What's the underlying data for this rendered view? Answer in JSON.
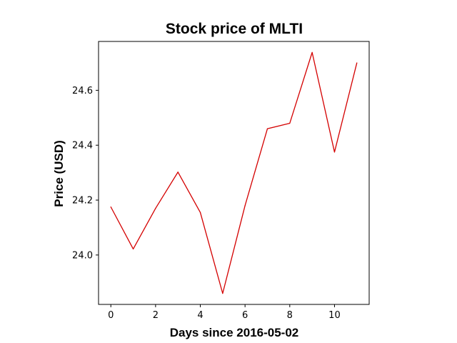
{
  "chart_data": {
    "type": "line",
    "title": "Stock price of MLTI",
    "xlabel": "Days since 2016-05-02",
    "ylabel": "Price (USD)",
    "x": [
      0,
      1,
      2,
      3,
      4,
      5,
      6,
      7,
      8,
      9,
      10,
      11
    ],
    "series": [
      {
        "color": "#d40000",
        "values": [
          24.175,
          24.022,
          24.17,
          24.302,
          24.155,
          23.86,
          24.18,
          24.46,
          24.48,
          24.738,
          24.375,
          24.7
        ]
      }
    ],
    "xlim": [
      -0.55,
      11.55
    ],
    "ylim": [
      23.82,
      24.778
    ],
    "xticks": [
      0,
      2,
      4,
      6,
      8,
      10
    ],
    "xtick_labels": [
      "0",
      "2",
      "4",
      "6",
      "8",
      "10"
    ],
    "yticks": [
      24.0,
      24.2,
      24.4,
      24.6
    ],
    "ytick_labels": [
      "24.0",
      "24.2",
      "24.4",
      "24.6"
    ],
    "grid": false,
    "legend": false
  }
}
